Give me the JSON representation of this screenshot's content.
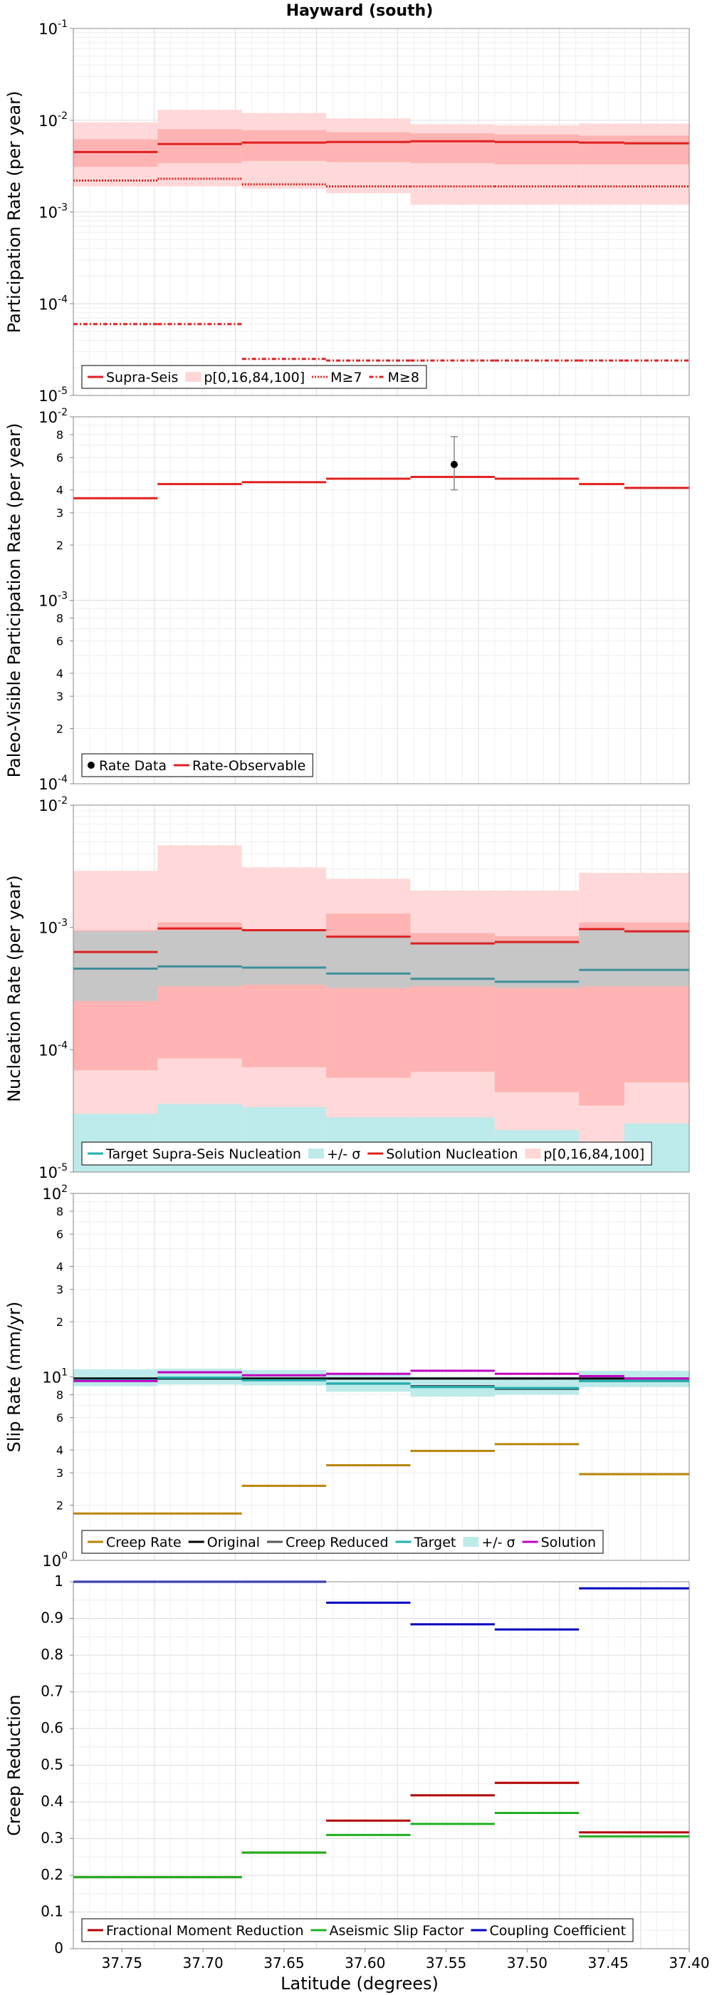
{
  "figure": {
    "title": "Hayward (south)",
    "xlabel": "Latitude (degrees)",
    "x_ticks": [
      "37.75",
      "37.70",
      "37.65",
      "37.60",
      "37.55",
      "37.50",
      "37.45",
      "37.40"
    ]
  },
  "chart_data": [
    {
      "type": "line",
      "ylabel": "Participation Rate (per year)",
      "yscale": "log",
      "ylim": [
        1e-05,
        0.1
      ],
      "xlim": [
        37.78,
        37.4
      ],
      "grid": true,
      "legend_position": "bottom-left",
      "y_tick_labels": [
        [
          "10",
          "-1"
        ],
        [
          "10",
          "-2"
        ],
        [
          "10",
          "-3"
        ],
        [
          "10",
          "-4"
        ],
        [
          "10",
          "-5"
        ]
      ],
      "x_edges": [
        37.78,
        37.728,
        37.676,
        37.624,
        37.572,
        37.52,
        37.468,
        37.44,
        37.4
      ],
      "legend": [
        {
          "label": "Supra-Seis",
          "color": "#e02020",
          "style": "solid"
        },
        {
          "label": "p[0,16,84,100]",
          "color": "#ffd6d6",
          "style": "band"
        },
        {
          "label": "M≥7",
          "color": "#e02020",
          "style": "dotted"
        },
        {
          "label": "M≥8",
          "color": "#e02020",
          "style": "dashdot"
        }
      ],
      "bands": [
        {
          "color": "#ffd9d9",
          "low": [
            0.0019,
            0.0019,
            0.0018,
            0.0016,
            0.0012,
            0.0012,
            0.0012,
            0.0012
          ],
          "high": [
            0.0095,
            0.013,
            0.012,
            0.0105,
            0.009,
            0.0088,
            0.0092,
            0.0092
          ]
        },
        {
          "color": "#ffb3b3",
          "low": [
            0.0031,
            0.0034,
            0.0036,
            0.0035,
            0.0034,
            0.0033,
            0.0033,
            0.0033
          ],
          "high": [
            0.0062,
            0.008,
            0.0078,
            0.0074,
            0.0072,
            0.007,
            0.0068,
            0.0068
          ]
        }
      ],
      "series": [
        {
          "name": "Supra-Seis",
          "color": "#e02020",
          "style": "solid",
          "values": [
            0.0045,
            0.0055,
            0.0057,
            0.0058,
            0.0059,
            0.0058,
            0.0057,
            0.0056
          ]
        },
        {
          "name": "M≥7",
          "color": "#e02020",
          "style": "dotted",
          "values": [
            0.0022,
            0.0023,
            0.002,
            0.0019,
            0.0019,
            0.0019,
            0.0019,
            0.0019
          ]
        },
        {
          "name": "M≥8",
          "color": "#e02020",
          "style": "dashdot",
          "values": [
            6e-05,
            6e-05,
            2.5e-05,
            2.4e-05,
            2.4e-05,
            2.4e-05,
            2.4e-05,
            2.4e-05
          ]
        }
      ]
    },
    {
      "type": "line",
      "ylabel": "Paleo-Visible Participation Rate (per year)",
      "yscale": "log",
      "ylim": [
        0.0001,
        0.01
      ],
      "xlim": [
        37.78,
        37.4
      ],
      "grid": true,
      "legend_position": "bottom-left",
      "y_tick_labels": [
        [
          "10",
          "-2"
        ],
        "8",
        "6",
        "4",
        "3",
        "2",
        [
          "10",
          "-3"
        ],
        "8",
        "6",
        "4",
        "3",
        "2",
        [
          "10",
          "-4"
        ]
      ],
      "x_edges": [
        37.78,
        37.728,
        37.676,
        37.624,
        37.572,
        37.52,
        37.468,
        37.44,
        37.4
      ],
      "legend": [
        {
          "label": "Rate Data",
          "color": "#000000",
          "style": "point"
        },
        {
          "label": "Rate-Observable",
          "color": "#e02020",
          "style": "solid"
        }
      ],
      "series": [
        {
          "name": "Rate-Observable",
          "color": "#e02020",
          "style": "solid",
          "values": [
            0.0036,
            0.0043,
            0.0044,
            0.0046,
            0.0047,
            0.0046,
            0.0043,
            0.0041
          ]
        }
      ],
      "points": [
        {
          "name": "Rate Data",
          "x": 37.545,
          "y": 0.0055,
          "err_low": 0.004,
          "err_high": 0.0078
        }
      ]
    },
    {
      "type": "line",
      "ylabel": "Nucleation Rate (per year)",
      "yscale": "log",
      "ylim": [
        1e-05,
        0.01
      ],
      "xlim": [
        37.78,
        37.4
      ],
      "grid": true,
      "legend_position": "bottom-left",
      "y_tick_labels": [
        [
          "10",
          "-2"
        ],
        [
          "10",
          "-3"
        ],
        [
          "10",
          "-4"
        ],
        [
          "10",
          "-5"
        ]
      ],
      "x_edges": [
        37.78,
        37.728,
        37.676,
        37.624,
        37.572,
        37.52,
        37.468,
        37.44,
        37.4
      ],
      "legend": [
        {
          "label": "Target Supra-Seis Nucleation",
          "color": "#20b0b0",
          "style": "solid"
        },
        {
          "label": "+/- σ",
          "color": "#bfeaea",
          "style": "band"
        },
        {
          "label": "Solution Nucleation",
          "color": "#e02020",
          "style": "solid"
        },
        {
          "label": "p[0,16,84,100]",
          "color": "#ffd6d6",
          "style": "band"
        }
      ],
      "bands": [
        {
          "color": "#bdeaea",
          "low": [
            1e-05,
            1e-05,
            1e-05,
            1e-05,
            1e-05,
            1e-05,
            1e-05,
            1e-05
          ],
          "high": [
            0.00094,
            0.00097,
            0.00097,
            0.00087,
            0.00078,
            0.00075,
            0.00094,
            0.00094
          ]
        },
        {
          "color": "#ffd9d9",
          "low": [
            3e-05,
            3.6e-05,
            3.4e-05,
            2.8e-05,
            2.8e-05,
            2.2e-05,
            1.7e-05,
            2.5e-05
          ],
          "high": [
            0.0029,
            0.0047,
            0.0031,
            0.0025,
            0.002,
            0.002,
            0.0028,
            0.0028
          ]
        },
        {
          "color": "#ffb3b3",
          "low": [
            6.8e-05,
            8.5e-05,
            7.2e-05,
            5.9e-05,
            6.6e-05,
            4.5e-05,
            3.5e-05,
            5.4e-05
          ],
          "high": [
            0.00095,
            0.0011,
            0.00097,
            0.0013,
            0.0009,
            0.00085,
            0.0011,
            0.0011
          ]
        },
        {
          "color": "#c6c6c6",
          "low": [
            0.00025,
            0.00033,
            0.00034,
            0.00032,
            0.00033,
            0.00032,
            0.00033,
            0.00033
          ],
          "high": [
            0.00093,
            0.00095,
            0.00097,
            0.00086,
            0.00077,
            0.00078,
            0.00096,
            0.00096
          ]
        }
      ],
      "series": [
        {
          "name": "Solution Nucleation",
          "color": "#e02020",
          "style": "solid",
          "values": [
            0.00063,
            0.00098,
            0.00095,
            0.00084,
            0.00074,
            0.00076,
            0.00097,
            0.00093
          ]
        },
        {
          "name": "Target Supra-Seis Nucleation",
          "color": "#3f8f9a",
          "style": "solid",
          "values": [
            0.00046,
            0.00048,
            0.00047,
            0.00042,
            0.00038,
            0.00036,
            0.00045,
            0.00045
          ]
        }
      ]
    },
    {
      "type": "line",
      "ylabel": "Slip Rate (mm/yr)",
      "yscale": "log",
      "ylim": [
        1,
        100
      ],
      "xlim": [
        37.78,
        37.4
      ],
      "grid": true,
      "legend_position": "bottom-left",
      "y_tick_labels": [
        [
          "10",
          "2"
        ],
        "8",
        "6",
        "4",
        "3",
        "2",
        [
          "10",
          "1"
        ],
        "8",
        "6",
        "4",
        "3",
        "2",
        [
          "10",
          "0"
        ]
      ],
      "x_edges": [
        37.78,
        37.728,
        37.676,
        37.624,
        37.572,
        37.52,
        37.468,
        37.44,
        37.4
      ],
      "legend": [
        {
          "label": "Creep Rate",
          "color": "#b8860b",
          "style": "solid"
        },
        {
          "label": "Original",
          "color": "#000000",
          "style": "solid"
        },
        {
          "label": "Creep Reduced",
          "color": "#555555",
          "style": "solid"
        },
        {
          "label": "Target",
          "color": "#20b0b0",
          "style": "solid"
        },
        {
          "label": "+/- σ",
          "color": "#bfeaea",
          "style": "band"
        },
        {
          "label": "Solution",
          "color": "#c000c0",
          "style": "solid"
        }
      ],
      "bands": [
        {
          "color": "#bdeaea",
          "low": [
            8.9,
            9.1,
            9.0,
            8.3,
            7.8,
            8.0,
            8.8,
            8.8
          ],
          "high": [
            11,
            11.1,
            10.9,
            10.4,
            10.0,
            10.0,
            10.8,
            10.8
          ]
        }
      ],
      "series": [
        {
          "name": "Creep Rate",
          "color": "#b8860b",
          "style": "solid",
          "values": [
            1.8,
            1.8,
            2.55,
            3.3,
            3.95,
            4.3,
            2.95,
            2.95
          ]
        },
        {
          "name": "Original",
          "color": "#000000",
          "style": "solid",
          "values": [
            9.8,
            9.8,
            9.8,
            9.8,
            9.8,
            9.8,
            9.8,
            9.8
          ]
        },
        {
          "name": "Creep Reduced",
          "color": "#555555",
          "style": "solid",
          "values": [
            9.6,
            9.9,
            9.6,
            9.2,
            8.9,
            8.6,
            9.5,
            9.5
          ]
        },
        {
          "name": "Target",
          "color": "#20b0b0",
          "style": "solid",
          "values": [
            9.6,
            9.9,
            9.6,
            9.2,
            8.8,
            8.7,
            9.5,
            9.5
          ]
        },
        {
          "name": "Solution",
          "color": "#c000c0",
          "style": "solid",
          "values": [
            9.5,
            10.6,
            10.2,
            10.4,
            10.8,
            10.4,
            10.1,
            9.8
          ]
        }
      ]
    },
    {
      "type": "line",
      "ylabel": "Creep Reduction",
      "yscale": "linear",
      "ylim": [
        0,
        1
      ],
      "xlim": [
        37.78,
        37.4
      ],
      "grid": true,
      "legend_position": "bottom-left",
      "y_tick_labels": [
        "1",
        "0.9",
        "0.8",
        "0.7",
        "0.6",
        "0.5",
        "0.4",
        "0.3",
        "0.2",
        "0.1",
        "0"
      ],
      "x_edges": [
        37.78,
        37.728,
        37.676,
        37.624,
        37.572,
        37.52,
        37.468,
        37.44,
        37.4
      ],
      "legend": [
        {
          "label": "Fractional Moment Reduction",
          "color": "#b00000",
          "style": "solid"
        },
        {
          "label": "Aseismic Slip Factor",
          "color": "#20b020",
          "style": "solid"
        },
        {
          "label": "Coupling Coefficient",
          "color": "#0000c0",
          "style": "solid"
        }
      ],
      "series": [
        {
          "name": "Fractional Moment Reduction",
          "color": "#b00000",
          "style": "solid",
          "values": [
            0.195,
            0.195,
            0.262,
            0.349,
            0.418,
            0.452,
            0.317,
            0.317
          ]
        },
        {
          "name": "Aseismic Slip Factor",
          "color": "#20b020",
          "style": "solid",
          "values": [
            0.195,
            0.195,
            0.262,
            0.31,
            0.34,
            0.37,
            0.306,
            0.306
          ]
        },
        {
          "name": "Coupling Coefficient",
          "color": "#0000c0",
          "style": "solid",
          "values": [
            1.0,
            1.0,
            1.0,
            0.943,
            0.884,
            0.87,
            0.982,
            0.982
          ]
        }
      ]
    }
  ]
}
